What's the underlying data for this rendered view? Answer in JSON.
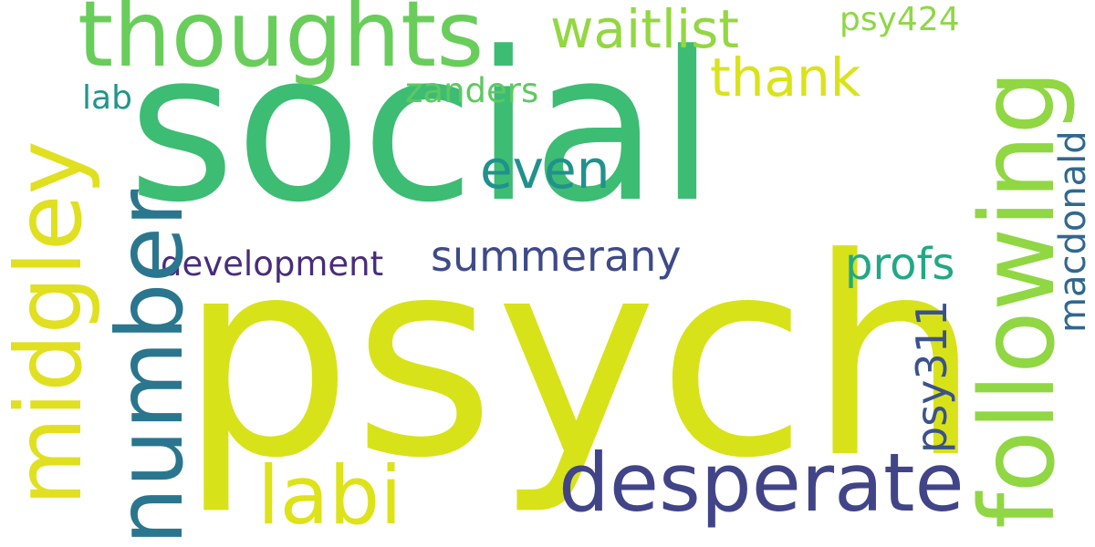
{
  "words": {
    "social": "social",
    "psych": "psych",
    "thoughts": "thoughts",
    "midgley": "midgley",
    "number": "number",
    "following": "following",
    "desperate": "desperate",
    "labi": "labi",
    "waitlist": "waitlist",
    "thank": "thank",
    "even": "even",
    "summerany": "summerany",
    "profs": "profs",
    "psy311": "psy311",
    "development": "development",
    "zanders": "zanders",
    "lab": "lab",
    "psy424": "psy424",
    "macdonald": "macdonald"
  },
  "colors": {
    "social": "#3dbc74",
    "psych": "#d8e219",
    "thoughts": "#69cd5b",
    "midgley": "#e0e020",
    "number": "#2a768e",
    "following": "#90d743",
    "desperate": "#414487",
    "labi": "#dde318",
    "waitlist": "#93d741",
    "thank": "#dae319",
    "even": "#21918c",
    "summerany": "#3e4a89",
    "profs": "#22a884",
    "psy311": "#3b528b",
    "development": "#472d7b",
    "zanders": "#5ec962",
    "lab": "#1f968b",
    "psy424": "#8fd744",
    "macdonald": "#31688e"
  }
}
